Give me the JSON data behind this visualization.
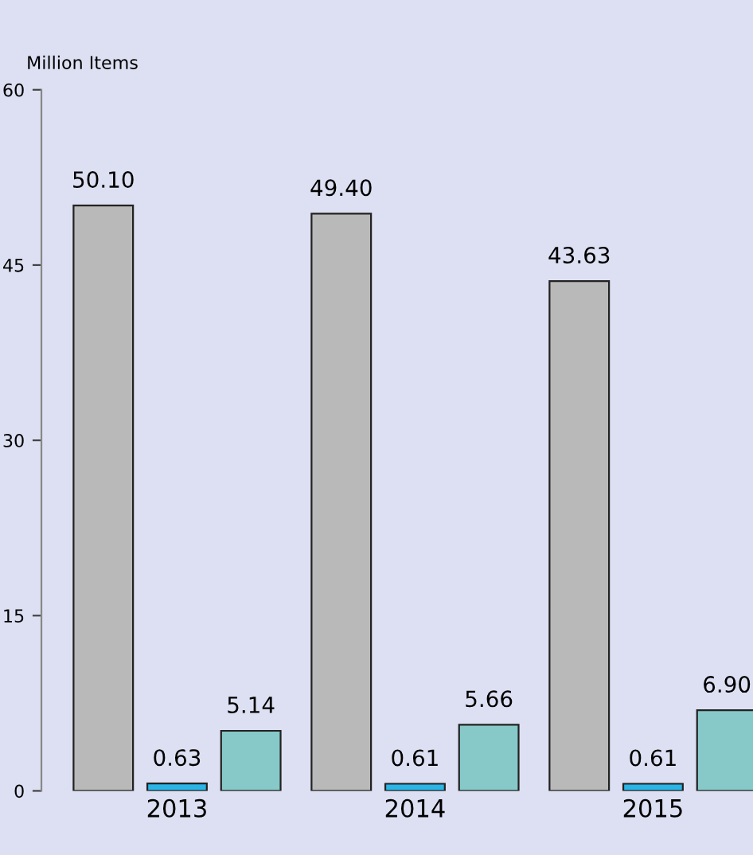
{
  "chart_data": {
    "type": "bar",
    "ylabel": "Million Items",
    "categories": [
      "2013",
      "2014",
      "2015"
    ],
    "series": [
      {
        "color": "#b9b9b9",
        "values": [
          50.1,
          49.4,
          43.63
        ],
        "value_labels": [
          "50.10",
          "49.40",
          "43.63"
        ]
      },
      {
        "color": "#2bb5e6",
        "values": [
          0.63,
          0.61,
          0.61
        ],
        "value_labels": [
          "0.63",
          "0.61",
          "0.61"
        ]
      },
      {
        "color": "#86c9c8",
        "values": [
          5.14,
          5.66,
          6.9
        ],
        "value_labels": [
          "5.14",
          "5.66",
          "6.90"
        ]
      }
    ],
    "ylim": [
      0,
      60
    ],
    "yticks": [
      0,
      15,
      30,
      45,
      60
    ],
    "grid": false,
    "legend": false
  }
}
